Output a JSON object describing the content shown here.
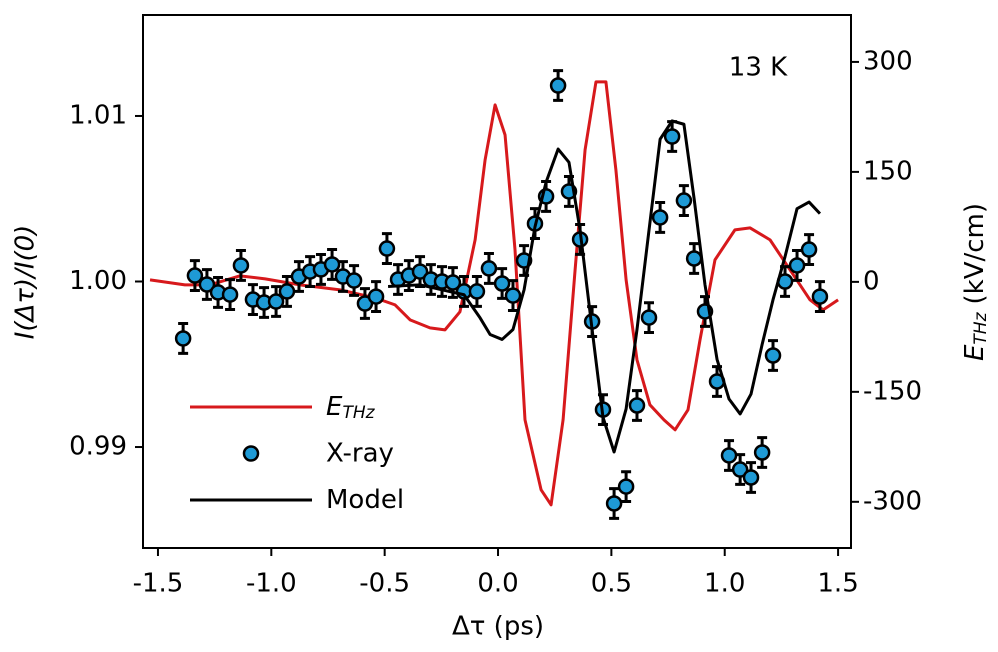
{
  "chart_data": {
    "type": "line",
    "annotation": "13 K",
    "x_label": "Δτ (ps)",
    "y_label": "I(Δτ)/I(0)",
    "y2_label": "(kV/cm)",
    "y2_label_symbol": "E",
    "y2_label_subscript": "THz",
    "xlim": [
      -1.566,
      1.557
    ],
    "xticks": [
      -1.5,
      {
        "value": -1,
        "label": "-1.0"
      },
      -0.5,
      {
        "value": 0,
        "label": "0.0"
      },
      0.5,
      {
        "value": 1,
        "label": "1.0"
      },
      1.5
    ],
    "ylim": [
      0.9839,
      1.0161
    ],
    "yticks": [
      0.99,
      {
        "value": 1,
        "label": "1.00"
      },
      1.01
    ],
    "y2lim": [
      -363,
      364
    ],
    "y2ticks": [
      -300,
      -150,
      0,
      150,
      300
    ],
    "legend": "lower left",
    "series": [
      {
        "name": "E",
        "subscript": "THz",
        "type": "line",
        "axis": "y2",
        "color": "#d7191c",
        "x": [
          -1.535,
          -1.381,
          -1.27,
          -1.138,
          -1.027,
          -0.873,
          -0.697,
          -0.543,
          -0.454,
          -0.388,
          -0.3,
          -0.234,
          -0.168,
          -0.101,
          -0.057,
          -0.013,
          0.031,
          0.075,
          0.119,
          0.19,
          0.234,
          0.287,
          0.34,
          0.384,
          0.432,
          0.476,
          0.52,
          0.565,
          0.613,
          0.67,
          0.732,
          0.781,
          0.838,
          0.891,
          0.957,
          1.045,
          1.112,
          1.2,
          1.288,
          1.376,
          1.434,
          1.5
        ],
        "values": [
          2.7,
          -4.1,
          -4.1,
          8.2,
          4.1,
          -4.1,
          -10.9,
          -21.8,
          -31.4,
          -51.8,
          -62.7,
          -65.5,
          -40.9,
          57.3,
          166.4,
          241.4,
          200.5,
          43.6,
          -188.2,
          -283.6,
          -304.1,
          -188.2,
          16.4,
          180,
          272.7,
          272.7,
          152.7,
          2.7,
          -106.4,
          -167.7,
          -188.2,
          -201.8,
          -174.5,
          -79.1,
          30,
          70.9,
          73.6,
          57.3,
          16.4,
          -24.5,
          -38.2,
          -24.5
        ]
      },
      {
        "name": "X-ray",
        "type": "scatter",
        "color": "#1e9ad6",
        "x": [
          -1.389,
          -1.337,
          -1.284,
          -1.235,
          -1.182,
          -1.134,
          -1.081,
          -1.032,
          -0.979,
          -0.931,
          -0.878,
          -0.829,
          -0.781,
          -0.732,
          -0.684,
          -0.635,
          -0.587,
          -0.538,
          -0.49,
          -0.441,
          -0.393,
          -0.344,
          -0.296,
          -0.247,
          -0.199,
          -0.15,
          -0.093,
          -0.04,
          0.018,
          0.066,
          0.115,
          0.163,
          0.212,
          0.265,
          0.313,
          0.362,
          0.415,
          0.463,
          0.512,
          0.565,
          0.613,
          0.666,
          0.715,
          0.768,
          0.82,
          0.865,
          0.913,
          0.966,
          1.019,
          1.068,
          1.116,
          1.165,
          1.213,
          1.266,
          1.319,
          1.372,
          1.42
        ],
        "values": [
          0.99656,
          1.00036,
          0.99982,
          0.99934,
          0.99921,
          1.00097,
          0.99891,
          0.99873,
          0.99879,
          0.9994,
          1.0003,
          1.0006,
          1.00073,
          1.00103,
          1.0003,
          1.00006,
          0.99867,
          0.99909,
          1.00199,
          1.00012,
          1.00036,
          1.0006,
          1.00012,
          1.0,
          0.99994,
          0.9994,
          0.9994,
          1.00079,
          0.99988,
          0.99915,
          1.00127,
          1.0035,
          1.00514,
          1.01184,
          1.00544,
          1.00254,
          0.99758,
          0.99226,
          0.98659,
          0.98761,
          0.99251,
          0.99782,
          1.00387,
          1.00876,
          1.00489,
          1.00139,
          0.99819,
          0.99396,
          0.98949,
          0.98864,
          0.98816,
          0.98967,
          0.99553,
          1.0,
          1.00097,
          1.00193,
          0.99909
        ],
        "errors": [
          0.0009,
          0.0009,
          0.0009,
          0.0009,
          0.0009,
          0.0009,
          0.0009,
          0.0009,
          0.0009,
          0.0009,
          0.0009,
          0.0009,
          0.0009,
          0.0009,
          0.0009,
          0.0009,
          0.0009,
          0.0009,
          0.0009,
          0.0009,
          0.0009,
          0.0009,
          0.0009,
          0.0009,
          0.0009,
          0.0009,
          0.0009,
          0.0009,
          0.0009,
          0.0009,
          0.0009,
          0.0009,
          0.0009,
          0.0009,
          0.0009,
          0.0009,
          0.0009,
          0.0009,
          0.0009,
          0.0009,
          0.0009,
          0.0009,
          0.0009,
          0.0009,
          0.0009,
          0.0009,
          0.0009,
          0.0009,
          0.0009,
          0.0009,
          0.0009,
          0.0009,
          0.0009,
          0.0009,
          0.0009,
          0.0009,
          0.0009
        ]
      },
      {
        "name": "Model",
        "type": "line",
        "color": "#000000",
        "x": [
          -0.485,
          -0.344,
          -0.247,
          -0.15,
          -0.079,
          -0.035,
          0.018,
          0.066,
          0.115,
          0.163,
          0.212,
          0.265,
          0.313,
          0.362,
          0.415,
          0.463,
          0.512,
          0.565,
          0.613,
          0.666,
          0.715,
          0.768,
          0.82,
          0.865,
          0.913,
          0.966,
          1.019,
          1.068,
          1.116,
          1.165,
          1.213,
          1.266,
          1.319,
          1.372,
          1.42
        ],
        "values": [
          0.9997,
          0.9998,
          0.9995,
          0.9992,
          0.9978,
          0.9968,
          0.9965,
          0.9971,
          0.9995,
          1.0033,
          1.006,
          1.008,
          1.0072,
          1.0031,
          0.9971,
          0.9918,
          0.9897,
          0.9923,
          0.9971,
          1.0031,
          1.0086,
          1.0097,
          1.0095,
          1.005,
          0.9998,
          0.9953,
          0.9929,
          0.992,
          0.9932,
          0.9962,
          0.9989,
          1.0015,
          1.0044,
          1.0048,
          1.0041
        ]
      }
    ]
  }
}
